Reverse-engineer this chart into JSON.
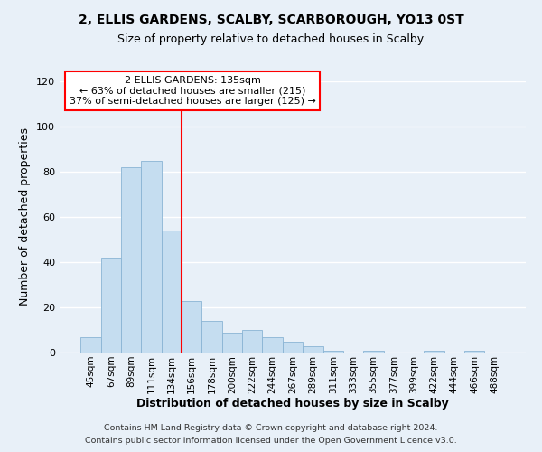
{
  "title": "2, ELLIS GARDENS, SCALBY, SCARBOROUGH, YO13 0ST",
  "subtitle": "Size of property relative to detached houses in Scalby",
  "xlabel": "Distribution of detached houses by size in Scalby",
  "ylabel": "Number of detached properties",
  "bar_labels": [
    "45sqm",
    "67sqm",
    "89sqm",
    "111sqm",
    "134sqm",
    "156sqm",
    "178sqm",
    "200sqm",
    "222sqm",
    "244sqm",
    "267sqm",
    "289sqm",
    "311sqm",
    "333sqm",
    "355sqm",
    "377sqm",
    "399sqm",
    "422sqm",
    "444sqm",
    "466sqm",
    "488sqm"
  ],
  "bar_values": [
    7,
    42,
    82,
    85,
    54,
    23,
    14,
    9,
    10,
    7,
    5,
    3,
    1,
    0,
    1,
    0,
    0,
    1,
    0,
    1,
    0
  ],
  "bar_color": "#c5ddf0",
  "bar_edge_color": "#8ab4d4",
  "vline_color": "red",
  "vline_pos": 4.5,
  "ylim": [
    0,
    120
  ],
  "yticks": [
    0,
    20,
    40,
    60,
    80,
    100,
    120
  ],
  "annotation_title": "2 ELLIS GARDENS: 135sqm",
  "annotation_line1": "← 63% of detached houses are smaller (215)",
  "annotation_line2": "37% of semi-detached houses are larger (125) →",
  "annotation_box_color": "#ffffff",
  "annotation_box_edge": "red",
  "footer_line1": "Contains HM Land Registry data © Crown copyright and database right 2024.",
  "footer_line2": "Contains public sector information licensed under the Open Government Licence v3.0.",
  "background_color": "#e8f0f8",
  "plot_bg_color": "#e8f0f8",
  "grid_color": "#ffffff",
  "title_fontsize": 10,
  "subtitle_fontsize": 9
}
